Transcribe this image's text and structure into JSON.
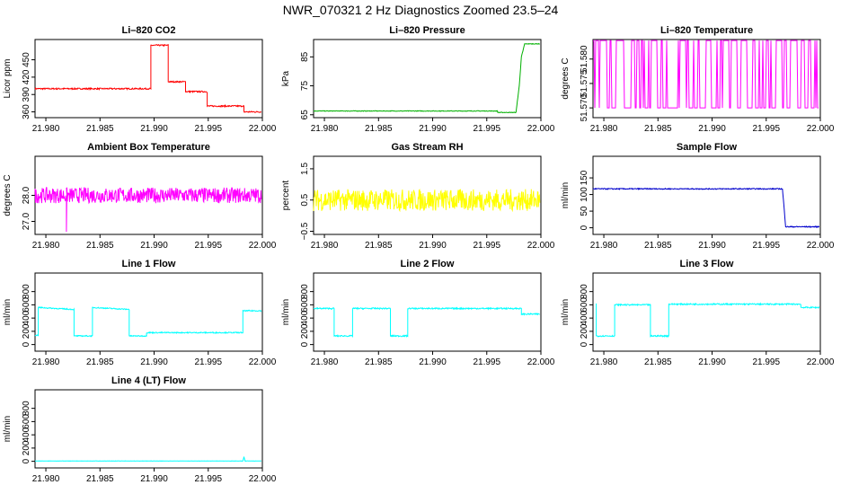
{
  "title": "NWR_070321  2 Hz Diagnostics Zoomed 23.5–24",
  "chart_data": [
    {
      "id": "co2",
      "type": "line",
      "title": "Li–820 CO2",
      "ylabel": "Licor ppm",
      "color": "#ff0000",
      "xlim": [
        21.979,
        22.0
      ],
      "ylim": [
        350,
        485
      ],
      "xticks": [
        "21.980",
        "21.985",
        "21.990",
        "21.995",
        "22.000"
      ],
      "yticks": [
        {
          "v": 360,
          "label": "360"
        },
        {
          "v": 390,
          "label": "390"
        },
        {
          "v": 420,
          "label": "420"
        },
        {
          "v": 450,
          "label": "450"
        }
      ],
      "x": [
        21.979,
        21.9897,
        21.9897,
        21.9913,
        21.9913,
        21.9929,
        21.9929,
        21.9949,
        21.9949,
        21.9983,
        21.9983,
        21.9999
      ],
      "y": [
        400,
        400,
        475,
        475,
        412,
        412,
        395,
        395,
        370,
        370,
        360,
        360
      ],
      "noise": 1.2
    },
    {
      "id": "pressure",
      "type": "line",
      "title": "Li–820 Pressure",
      "ylabel": "kPa",
      "color": "#00b000",
      "xlim": [
        21.979,
        22.0
      ],
      "ylim": [
        64,
        91
      ],
      "xticks": [
        "21.980",
        "21.985",
        "21.990",
        "21.995",
        "22.000"
      ],
      "yticks": [
        {
          "v": 65,
          "label": "65"
        },
        {
          "v": 75,
          "label": "75"
        },
        {
          "v": 85,
          "label": "85"
        }
      ],
      "x": [
        21.979,
        21.996,
        21.996,
        21.9977,
        21.998,
        21.9982,
        21.9985,
        21.9999
      ],
      "y": [
        66.3,
        66.3,
        65.8,
        65.8,
        75,
        85,
        89.5,
        89.5
      ],
      "noise": 0.1
    },
    {
      "id": "temp",
      "type": "line",
      "title": "Li–820 Temperature",
      "ylabel": "degrees C",
      "color": "#ff00ff",
      "xlim": [
        21.979,
        22.0
      ],
      "ylim": [
        51.568,
        51.584
      ],
      "xticks": [
        "21.980",
        "21.985",
        "21.990",
        "21.995",
        "22.000"
      ],
      "yticks": [
        {
          "v": 51.57,
          "label": "51.570"
        },
        {
          "v": 51.575,
          "label": "51.575"
        },
        {
          "v": 51.58,
          "label": "51.580"
        }
      ],
      "x": [
        21.979,
        21.9999
      ],
      "y": [
        51.57,
        51.57
      ],
      "binary": [
        51.57,
        51.5838
      ]
    },
    {
      "id": "ambient",
      "type": "line",
      "title": "Ambient Box Temperature",
      "ylabel": "degrees C",
      "color": "#ff00ff",
      "xlim": [
        21.979,
        22.0
      ],
      "ylim": [
        26.5,
        29.5
      ],
      "xticks": [
        "21.980",
        "21.985",
        "21.990",
        "21.995",
        "22.000"
      ],
      "yticks": [
        {
          "v": 27,
          "label": "27.0"
        },
        {
          "v": 28,
          "label": "28.0"
        }
      ],
      "x": [
        21.979,
        21.9999
      ],
      "y": [
        28.0,
        28.0
      ],
      "noise": 0.3,
      "spike": {
        "x": 21.9819,
        "y": 26.6
      }
    },
    {
      "id": "rh",
      "type": "line",
      "title": "Gas Stream RH",
      "ylabel": "percent",
      "color": "#ffff00",
      "xlim": [
        21.979,
        22.0
      ],
      "ylim": [
        -0.6,
        1.9
      ],
      "xticks": [
        "21.980",
        "21.985",
        "21.990",
        "21.995",
        "22.000"
      ],
      "yticks": [
        {
          "v": -0.5,
          "label": "−0.5"
        },
        {
          "v": 0.5,
          "label": "0.5"
        },
        {
          "v": 1.5,
          "label": "1.5"
        }
      ],
      "x": [
        21.979,
        21.9999
      ],
      "y": [
        0.5,
        0.5
      ],
      "noise": 0.35
    },
    {
      "id": "sample",
      "type": "line",
      "title": "Sample Flow",
      "ylabel": "ml/min",
      "color": "#0000cc",
      "xlim": [
        21.979,
        22.0
      ],
      "ylim": [
        -20,
        215
      ],
      "xticks": [
        "21.980",
        "21.985",
        "21.990",
        "21.995",
        "22.000"
      ],
      "yticks": [
        {
          "v": 0,
          "label": "0"
        },
        {
          "v": 50,
          "label": "50"
        },
        {
          "v": 100,
          "label": "100"
        },
        {
          "v": 150,
          "label": "150"
        }
      ],
      "x": [
        21.979,
        21.9965,
        21.9968,
        21.9999
      ],
      "y": [
        117,
        117,
        3,
        3
      ],
      "noise": 1.5
    },
    {
      "id": "line1",
      "type": "line",
      "title": "Line 1 Flow",
      "ylabel": "ml/min",
      "color": "#00ffff",
      "xlim": [
        21.979,
        22.0
      ],
      "ylim": [
        -100,
        1080
      ],
      "xticks": [
        "21.980",
        "21.985",
        "21.990",
        "21.995",
        "22.000"
      ],
      "yticks": [
        {
          "v": 0,
          "label": "0"
        },
        {
          "v": 200,
          "label": "200"
        },
        {
          "v": 400,
          "label": "400"
        },
        {
          "v": 600,
          "label": "600"
        },
        {
          "v": 800,
          "label": "800"
        }
      ],
      "x": [
        21.979,
        21.9793,
        21.9793,
        21.9826,
        21.9826,
        21.9843,
        21.9843,
        21.9877,
        21.9877,
        21.9893,
        21.9893,
        21.9982,
        21.9982,
        21.9999
      ],
      "y": [
        140,
        140,
        560,
        530,
        130,
        130,
        560,
        530,
        130,
        130,
        180,
        180,
        510,
        510
      ],
      "noise": 8
    },
    {
      "id": "line2",
      "type": "line",
      "title": "Line 2 Flow",
      "ylabel": "ml/min",
      "color": "#00ffff",
      "xlim": [
        21.979,
        22.0
      ],
      "ylim": [
        -100,
        1080
      ],
      "xticks": [
        "21.980",
        "21.985",
        "21.990",
        "21.995",
        "22.000"
      ],
      "yticks": [
        {
          "v": 0,
          "label": "0"
        },
        {
          "v": 200,
          "label": "200"
        },
        {
          "v": 400,
          "label": "400"
        },
        {
          "v": 600,
          "label": "600"
        },
        {
          "v": 800,
          "label": "800"
        }
      ],
      "x": [
        21.979,
        21.9809,
        21.9809,
        21.9826,
        21.9826,
        21.9861,
        21.9861,
        21.9877,
        21.9877,
        21.9982,
        21.9982,
        21.9999
      ],
      "y": [
        545,
        545,
        130,
        130,
        545,
        545,
        130,
        130,
        545,
        545,
        460,
        460
      ],
      "noise": 10
    },
    {
      "id": "line3",
      "type": "line",
      "title": "Line 3 Flow",
      "ylabel": "ml/min",
      "color": "#00ffff",
      "xlim": [
        21.979,
        22.0
      ],
      "ylim": [
        -100,
        1080
      ],
      "xticks": [
        "21.980",
        "21.985",
        "21.990",
        "21.995",
        "22.000"
      ],
      "yticks": [
        {
          "v": 0,
          "label": "0"
        },
        {
          "v": 200,
          "label": "200"
        },
        {
          "v": 400,
          "label": "400"
        },
        {
          "v": 600,
          "label": "600"
        },
        {
          "v": 800,
          "label": "800"
        }
      ],
      "x": [
        21.9793,
        21.9793,
        21.981,
        21.981,
        21.9843,
        21.9843,
        21.986,
        21.986,
        21.9982,
        21.9982,
        21.9999
      ],
      "y": [
        620,
        130,
        130,
        600,
        600,
        130,
        130,
        610,
        610,
        560,
        560
      ],
      "noise": 10
    },
    {
      "id": "line4",
      "type": "line",
      "title": "Line 4 (LT) Flow",
      "ylabel": "ml/min",
      "color": "#00ffff",
      "xlim": [
        21.979,
        22.0
      ],
      "ylim": [
        -100,
        1080
      ],
      "xticks": [
        "21.980",
        "21.985",
        "21.990",
        "21.995",
        "22.000"
      ],
      "yticks": [
        {
          "v": 0,
          "label": "0"
        },
        {
          "v": 200,
          "label": "200"
        },
        {
          "v": 400,
          "label": "400"
        },
        {
          "v": 600,
          "label": "600"
        },
        {
          "v": 800,
          "label": "800"
        }
      ],
      "x": [
        21.979,
        21.9982,
        21.9983,
        21.9984,
        21.9999
      ],
      "y": [
        5,
        5,
        70,
        5,
        5
      ],
      "noise": 2
    }
  ]
}
